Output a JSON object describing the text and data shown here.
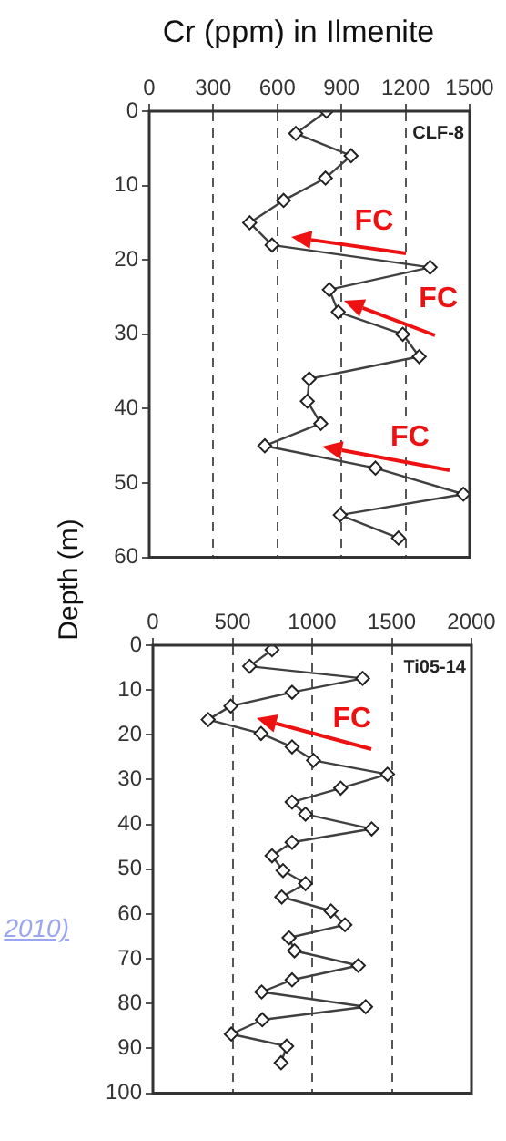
{
  "chart_data": [
    {
      "type": "line",
      "title": "Cr (ppm) in Ilmenite",
      "color": "#404040",
      "marker": "diamond",
      "grid": "x",
      "x": [
        830,
        686,
        945,
        825,
        629,
        470,
        575,
        1315,
        843,
        885,
        1187,
        1264,
        749,
        740,
        803,
        541,
        1059,
        1471,
        894,
        1167
      ],
      "values": [
        0,
        3,
        6,
        9,
        12,
        15,
        18,
        21,
        24,
        27,
        30,
        33,
        36,
        39,
        42,
        45,
        48,
        51.5,
        54.3,
        57.4
      ],
      "xlim": [
        0,
        1500
      ],
      "xticks": [
        0,
        300,
        600,
        900,
        1200,
        1500
      ],
      "ylim": [
        60,
        0
      ],
      "yticks": [
        0,
        10,
        20,
        30,
        40,
        50,
        60
      ],
      "annotations": [
        "CLF-8",
        {
          "text": "FC",
          "x": 575,
          "y": 18
        },
        {
          "text": "FC",
          "x": 885,
          "y": 27
        },
        {
          "text": "FC",
          "x": 803,
          "y": 42.4
        }
      ]
    },
    {
      "type": "line",
      "ylabel": "Depth (m)",
      "color": "#404040",
      "marker": "diamond",
      "grid": "x",
      "x": [
        748,
        607,
        1317,
        874,
        489,
        347,
        679,
        874,
        1008,
        1473,
        1179,
        874,
        958,
        1374,
        874,
        748,
        817,
        958,
        809,
        1118,
        1206,
        855,
        889,
        1290,
        874,
        683,
        1336,
        687,
        492,
        840,
        805
      ],
      "values": [
        1,
        4.7,
        7.4,
        10.5,
        13.6,
        16.6,
        19.7,
        22.7,
        25.7,
        28.8,
        31.9,
        35,
        37.7,
        41,
        44,
        47,
        50.3,
        53.2,
        56.2,
        59.3,
        62.4,
        65.3,
        68.2,
        71.5,
        74.7,
        77.4,
        80.7,
        83.6,
        86.8,
        89.5,
        93.2
      ],
      "xlim": [
        0,
        2000
      ],
      "xticks": [
        0,
        500,
        1000,
        1500,
        2000
      ],
      "ylim": [
        100,
        0
      ],
      "yticks": [
        0,
        10,
        20,
        30,
        40,
        50,
        60,
        70,
        80,
        90,
        100
      ],
      "annotations": [
        "Ti05-14",
        {
          "text": "FC",
          "x": 679,
          "y": 19.7
        },
        "2010)"
      ]
    }
  ]
}
